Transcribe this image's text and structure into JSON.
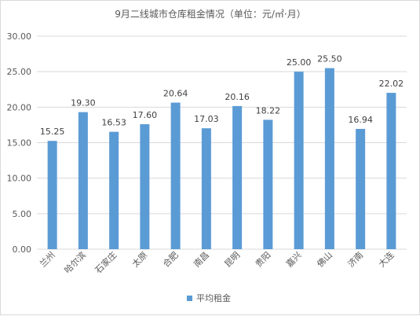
{
  "chart_data": {
    "type": "bar",
    "title": "9月二线城市仓库租金情况（单位：元/㎡·月）",
    "categories": [
      "兰州",
      "哈尔滨",
      "石家庄",
      "太原",
      "合肥",
      "南昌",
      "昆明",
      "贵阳",
      "嘉兴",
      "佛山",
      "济南",
      "大连"
    ],
    "series": [
      {
        "name": "平均租金",
        "values": [
          15.25,
          19.3,
          16.53,
          17.6,
          20.64,
          17.03,
          20.16,
          18.22,
          25.0,
          25.5,
          16.94,
          22.02
        ]
      }
    ],
    "data_labels": [
      "15.25",
      "19.30",
      "16.53",
      "17.60",
      "20.64",
      "17.03",
      "20.16",
      "18.22",
      "25.00",
      "25.50",
      "16.94",
      "22.02"
    ],
    "yticks": [
      "0.00",
      "5.00",
      "10.00",
      "15.00",
      "20.00",
      "25.00",
      "30.00"
    ],
    "ylim": [
      0,
      30
    ],
    "grid": true,
    "legend_position": "bottom",
    "bar_color": "#5b9bd5",
    "grid_color": "#d9d9d9"
  }
}
